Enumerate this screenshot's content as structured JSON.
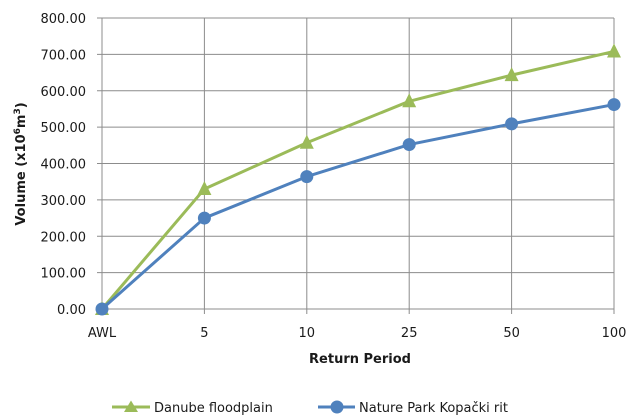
{
  "chart_data": {
    "type": "line",
    "categories": [
      "AWL",
      "5",
      "10",
      "25",
      "50",
      "100"
    ],
    "series": [
      {
        "name": "Danube floodplain",
        "values": [
          0,
          330,
          457,
          571,
          643,
          708
        ],
        "color": "#9bbb59",
        "marker": "triangle"
      },
      {
        "name": "Nature Park Kopački rit",
        "values": [
          0,
          250,
          364,
          452,
          509,
          562
        ],
        "color": "#4f81bd",
        "marker": "circle"
      }
    ],
    "xlabel": "Return Period",
    "ylabel_main": "Volume (x10",
    "ylabel_sup1": "6",
    "ylabel_mid": "m",
    "ylabel_sup2": "3",
    "ylabel_end": ")",
    "yticks": [
      "0.00",
      "100.00",
      "200.00",
      "300.00",
      "400.00",
      "500.00",
      "600.00",
      "700.00",
      "800.00"
    ],
    "ylim": [
      0,
      800
    ],
    "grid": true,
    "legend_position": "bottom"
  }
}
